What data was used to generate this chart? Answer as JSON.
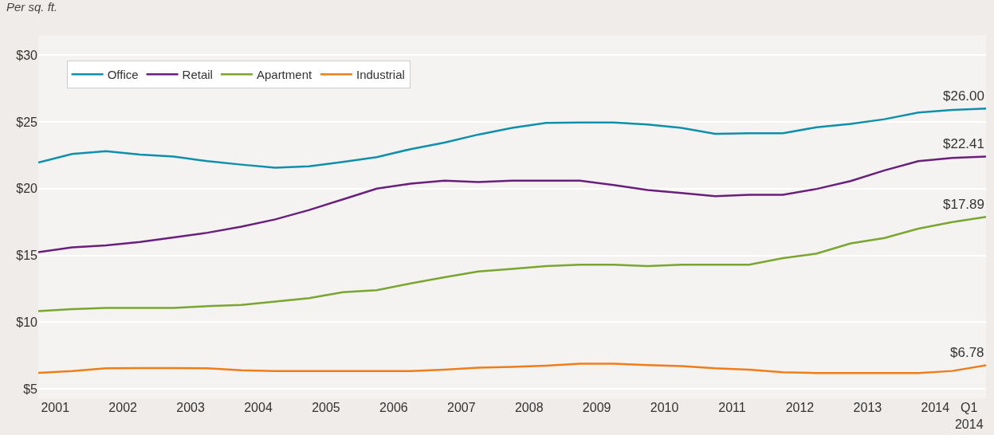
{
  "chart_data": {
    "type": "line",
    "ylabel": "Per sq. ft.",
    "x": [
      2001,
      2001.5,
      2002,
      2002.5,
      2003,
      2003.5,
      2004,
      2004.5,
      2005,
      2005.5,
      2006,
      2006.5,
      2007,
      2007.5,
      2008,
      2008.5,
      2009,
      2009.5,
      2010,
      2010.5,
      2011,
      2011.5,
      2012,
      2012.5,
      2013,
      2013.5,
      2014,
      2014.5,
      2015
    ],
    "series": [
      {
        "name": "Office",
        "color": "#0e8fab",
        "values": [
          21.96,
          22.6,
          22.8,
          22.56,
          22.4,
          22.06,
          21.8,
          21.57,
          21.67,
          22.0,
          22.36,
          22.96,
          23.45,
          24.05,
          24.55,
          24.93,
          24.95,
          24.95,
          24.8,
          24.55,
          24.1,
          24.15,
          24.15,
          24.6,
          24.85,
          25.2,
          25.7,
          25.9,
          26.0
        ]
      },
      {
        "name": "Retail",
        "color": "#6b1f7c",
        "values": [
          15.24,
          15.6,
          15.76,
          16.0,
          16.35,
          16.7,
          17.15,
          17.7,
          18.4,
          19.2,
          20.0,
          20.37,
          20.6,
          20.5,
          20.6,
          20.6,
          20.6,
          20.27,
          19.9,
          19.68,
          19.44,
          19.54,
          19.54,
          19.98,
          20.57,
          21.37,
          22.06,
          22.3,
          22.41
        ]
      },
      {
        "name": "Apartment",
        "color": "#7aa62f",
        "values": [
          10.83,
          10.98,
          11.07,
          11.07,
          11.07,
          11.2,
          11.3,
          11.55,
          11.8,
          12.25,
          12.4,
          12.9,
          13.37,
          13.8,
          14.0,
          14.2,
          14.3,
          14.3,
          14.2,
          14.3,
          14.3,
          14.3,
          14.8,
          15.14,
          15.9,
          16.3,
          17.0,
          17.5,
          17.89
        ]
      },
      {
        "name": "Industrial",
        "color": "#ef7d1a",
        "values": [
          6.21,
          6.35,
          6.55,
          6.56,
          6.56,
          6.55,
          6.41,
          6.35,
          6.35,
          6.35,
          6.35,
          6.35,
          6.45,
          6.59,
          6.65,
          6.75,
          6.89,
          6.89,
          6.79,
          6.71,
          6.55,
          6.45,
          6.25,
          6.2,
          6.2,
          6.2,
          6.2,
          6.35,
          6.78
        ]
      }
    ],
    "xlim": [
      2001,
      2015
    ],
    "xticks": [
      {
        "value": 2001.25,
        "label": "2001"
      },
      {
        "value": 2002.25,
        "label": "2002"
      },
      {
        "value": 2003.25,
        "label": "2003"
      },
      {
        "value": 2004.25,
        "label": "2004"
      },
      {
        "value": 2005.25,
        "label": "2005"
      },
      {
        "value": 2006.25,
        "label": "2006"
      },
      {
        "value": 2007.25,
        "label": "2007"
      },
      {
        "value": 2008.25,
        "label": "2008"
      },
      {
        "value": 2009.25,
        "label": "2009"
      },
      {
        "value": 2010.25,
        "label": "2010"
      },
      {
        "value": 2011.25,
        "label": "2011"
      },
      {
        "value": 2012.25,
        "label": "2012"
      },
      {
        "value": 2013.25,
        "label": "2013"
      },
      {
        "value": 2014.25,
        "label": "2014"
      },
      {
        "value": 2014.75,
        "label": "Q1\n2014"
      }
    ],
    "ylim": [
      4.3,
      31.5
    ],
    "yticks": [
      {
        "value": 5,
        "label": "$5"
      },
      {
        "value": 10,
        "label": "$10"
      },
      {
        "value": 15,
        "label": "$15"
      },
      {
        "value": 20,
        "label": "$20"
      },
      {
        "value": 25,
        "label": "$25"
      },
      {
        "value": 30,
        "label": "$30"
      }
    ],
    "annotations": [
      {
        "text": "$26.00",
        "y": 26.0
      },
      {
        "text": "$22.41",
        "y": 22.41
      },
      {
        "text": "$17.89",
        "y": 17.89
      },
      {
        "text": "$6.78",
        "y": 6.78
      }
    ],
    "grid": "y",
    "legend": "top left",
    "marker": "none",
    "line_style": "solid"
  }
}
